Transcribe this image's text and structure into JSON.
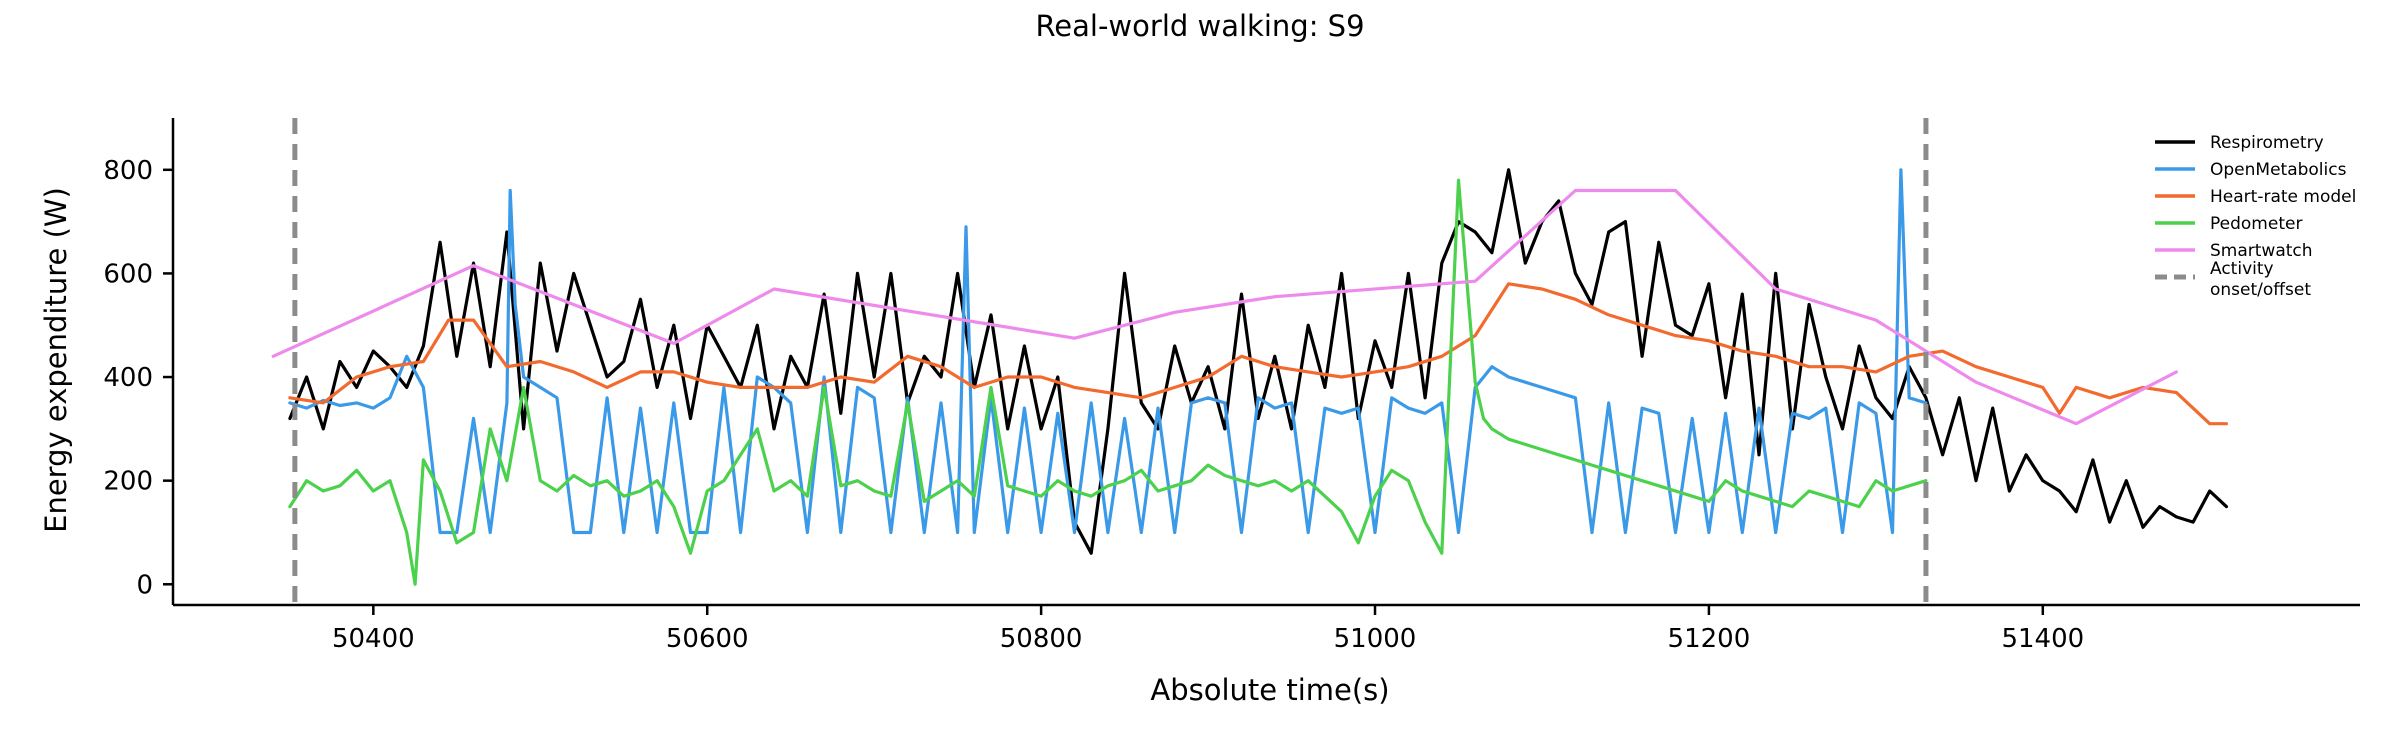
{
  "chart_data": {
    "type": "line",
    "title": "Real-world walking: S9",
    "xlabel": "Absolute time(s)",
    "ylabel": "Energy expenditure (W)",
    "xlim": [
      50280,
      51590
    ],
    "ylim": [
      -40,
      900
    ],
    "xticks": [
      50400,
      50600,
      50800,
      51000,
      51200,
      51400
    ],
    "yticks": [
      0,
      200,
      400,
      600,
      800
    ],
    "grid": false,
    "legend_position": "top-right",
    "vlines": {
      "name": "Activity onset/offset",
      "x": [
        50353,
        51330
      ],
      "color": "#8c8c8c"
    },
    "series": [
      {
        "name": "Respirometry",
        "color": "#000000",
        "x": [
          50350,
          50360,
          50370,
          50380,
          50390,
          50400,
          50410,
          50420,
          50430,
          50440,
          50450,
          50460,
          50470,
          50480,
          50490,
          50500,
          50510,
          50520,
          50530,
          50540,
          50550,
          50560,
          50570,
          50580,
          50590,
          50600,
          50610,
          50620,
          50630,
          50640,
          50650,
          50660,
          50670,
          50680,
          50690,
          50700,
          50710,
          50720,
          50730,
          50740,
          50750,
          50760,
          50770,
          50780,
          50790,
          50800,
          50810,
          50820,
          50830,
          50840,
          50850,
          50860,
          50870,
          50880,
          50890,
          50900,
          50910,
          50920,
          50930,
          50940,
          50950,
          50960,
          50970,
          50980,
          50990,
          51000,
          51010,
          51020,
          51030,
          51040,
          51050,
          51060,
          51070,
          51080,
          51090,
          51100,
          51110,
          51120,
          51130,
          51140,
          51150,
          51160,
          51170,
          51180,
          51190,
          51200,
          51210,
          51220,
          51230,
          51240,
          51250,
          51260,
          51270,
          51280,
          51290,
          51300,
          51310,
          51320,
          51330,
          51340,
          51350,
          51360,
          51370,
          51380,
          51390,
          51400,
          51410,
          51420,
          51430,
          51440,
          51450,
          51460,
          51470,
          51480,
          51490,
          51500,
          51510
        ],
        "values": [
          320,
          400,
          300,
          430,
          380,
          450,
          420,
          380,
          460,
          660,
          440,
          620,
          420,
          680,
          300,
          620,
          450,
          600,
          500,
          400,
          430,
          550,
          380,
          500,
          320,
          500,
          440,
          380,
          500,
          300,
          440,
          380,
          560,
          330,
          600,
          400,
          600,
          350,
          440,
          400,
          600,
          380,
          520,
          300,
          460,
          300,
          400,
          120,
          60,
          300,
          600,
          350,
          300,
          460,
          350,
          420,
          300,
          560,
          320,
          440,
          300,
          500,
          380,
          600,
          320,
          470,
          380,
          600,
          360,
          620,
          700,
          680,
          640,
          800,
          620,
          700,
          740,
          600,
          540,
          680,
          700,
          440,
          660,
          500,
          480,
          580,
          360,
          560,
          250,
          600,
          300,
          540,
          400,
          300,
          460,
          360,
          320,
          420,
          360,
          250,
          360,
          200,
          340,
          180,
          250,
          200,
          180,
          140,
          240,
          120,
          200,
          110,
          150,
          130,
          120,
          180,
          150
        ]
      },
      {
        "name": "OpenMetabolics",
        "color": "#3b9ae8",
        "x": [
          50350,
          50360,
          50370,
          50380,
          50390,
          50400,
          50410,
          50420,
          50430,
          50440,
          50450,
          50460,
          50470,
          50480,
          50482,
          50485,
          50490,
          50500,
          50510,
          50520,
          50530,
          50540,
          50550,
          50560,
          50570,
          50580,
          50590,
          50600,
          50610,
          50620,
          50630,
          50640,
          50650,
          50660,
          50670,
          50680,
          50690,
          50700,
          50710,
          50720,
          50730,
          50740,
          50750,
          50755,
          50760,
          50770,
          50780,
          50790,
          50800,
          50810,
          50820,
          50830,
          50840,
          50850,
          50860,
          50870,
          50880,
          50890,
          50900,
          50910,
          50920,
          50930,
          50940,
          50950,
          50960,
          50970,
          50980,
          50990,
          51000,
          51010,
          51020,
          51030,
          51040,
          51050,
          51060,
          51070,
          51080,
          51090,
          51100,
          51110,
          51120,
          51130,
          51140,
          51150,
          51160,
          51170,
          51180,
          51190,
          51200,
          51210,
          51220,
          51230,
          51240,
          51250,
          51260,
          51270,
          51280,
          51290,
          51300,
          51310,
          51315,
          51320,
          51330
        ],
        "values": [
          350,
          340,
          355,
          345,
          350,
          340,
          360,
          440,
          380,
          100,
          100,
          320,
          100,
          350,
          760,
          540,
          400,
          380,
          360,
          100,
          100,
          360,
          100,
          340,
          100,
          350,
          100,
          100,
          380,
          100,
          400,
          380,
          350,
          100,
          400,
          100,
          380,
          360,
          100,
          360,
          100,
          350,
          100,
          690,
          100,
          360,
          100,
          340,
          100,
          330,
          100,
          350,
          100,
          320,
          100,
          340,
          100,
          350,
          360,
          350,
          100,
          360,
          340,
          350,
          100,
          340,
          330,
          340,
          100,
          360,
          340,
          330,
          350,
          100,
          380,
          420,
          400,
          390,
          380,
          370,
          360,
          100,
          350,
          100,
          340,
          330,
          100,
          320,
          100,
          330,
          100,
          340,
          100,
          330,
          320,
          340,
          100,
          350,
          330,
          100,
          800,
          360,
          350
        ]
      },
      {
        "name": "Heart-rate model",
        "color": "#f26a2e",
        "x": [
          50350,
          50370,
          50390,
          50410,
          50430,
          50445,
          50460,
          50480,
          50500,
          50520,
          50540,
          50560,
          50580,
          50600,
          50620,
          50640,
          50660,
          50680,
          50700,
          50720,
          50740,
          50760,
          50780,
          50800,
          50820,
          50840,
          50860,
          50880,
          50900,
          50920,
          50940,
          50960,
          50980,
          51000,
          51020,
          51040,
          51060,
          51080,
          51100,
          51120,
          51140,
          51160,
          51180,
          51200,
          51220,
          51240,
          51260,
          51280,
          51300,
          51320,
          51340,
          51360,
          51380,
          51400,
          51410,
          51420,
          51440,
          51460,
          51480,
          51500,
          51510
        ],
        "values": [
          360,
          350,
          400,
          420,
          430,
          510,
          510,
          420,
          430,
          410,
          380,
          410,
          410,
          390,
          380,
          380,
          380,
          400,
          390,
          440,
          420,
          380,
          400,
          400,
          380,
          370,
          360,
          380,
          400,
          440,
          420,
          410,
          400,
          410,
          420,
          440,
          480,
          580,
          570,
          550,
          520,
          500,
          480,
          470,
          450,
          440,
          420,
          420,
          410,
          440,
          450,
          420,
          400,
          380,
          330,
          380,
          360,
          380,
          370,
          310,
          310
        ]
      },
      {
        "name": "Pedometer",
        "color": "#4cd14c",
        "x": [
          50350,
          50360,
          50370,
          50380,
          50390,
          50400,
          50410,
          50420,
          50425,
          50430,
          50440,
          50450,
          50460,
          50470,
          50480,
          50490,
          50500,
          50510,
          50520,
          50530,
          50540,
          50550,
          50560,
          50570,
          50580,
          50590,
          50600,
          50610,
          50620,
          50630,
          50640,
          50650,
          50660,
          50670,
          50680,
          50690,
          50700,
          50710,
          50720,
          50730,
          50740,
          50750,
          50760,
          50770,
          50780,
          50790,
          50800,
          50810,
          50820,
          50830,
          50840,
          50850,
          50860,
          50870,
          50880,
          50890,
          50900,
          50910,
          50920,
          50930,
          50940,
          50950,
          50960,
          50970,
          50980,
          50990,
          51000,
          51010,
          51020,
          51030,
          51040,
          51050,
          51060,
          51065,
          51070,
          51080,
          51090,
          51100,
          51110,
          51120,
          51130,
          51140,
          51150,
          51160,
          51170,
          51180,
          51190,
          51200,
          51210,
          51220,
          51230,
          51240,
          51250,
          51260,
          51270,
          51280,
          51290,
          51300,
          51310,
          51320,
          51330
        ],
        "values": [
          150,
          200,
          180,
          190,
          220,
          180,
          200,
          100,
          0,
          240,
          180,
          80,
          100,
          300,
          200,
          380,
          200,
          180,
          210,
          190,
          200,
          170,
          180,
          200,
          150,
          60,
          180,
          200,
          250,
          300,
          180,
          200,
          170,
          380,
          190,
          200,
          180,
          170,
          350,
          160,
          180,
          200,
          170,
          380,
          190,
          180,
          170,
          200,
          180,
          170,
          190,
          200,
          220,
          180,
          190,
          200,
          230,
          210,
          200,
          190,
          200,
          180,
          200,
          170,
          140,
          80,
          170,
          220,
          200,
          120,
          60,
          780,
          390,
          320,
          300,
          280,
          270,
          260,
          250,
          240,
          230,
          220,
          210,
          200,
          190,
          180,
          170,
          160,
          200,
          180,
          170,
          160,
          150,
          180,
          170,
          160,
          150,
          200,
          180,
          190,
          200
        ]
      },
      {
        "name": "Smartwatch",
        "color": "#ee8aeb",
        "x": [
          50340,
          50460,
          50580,
          50640,
          50820,
          50880,
          50940,
          51060,
          51120,
          51180,
          51240,
          51300,
          51360,
          51420,
          51480
        ],
        "values": [
          440,
          615,
          465,
          570,
          475,
          525,
          555,
          585,
          760,
          760,
          570,
          510,
          390,
          310,
          410
        ]
      }
    ]
  }
}
